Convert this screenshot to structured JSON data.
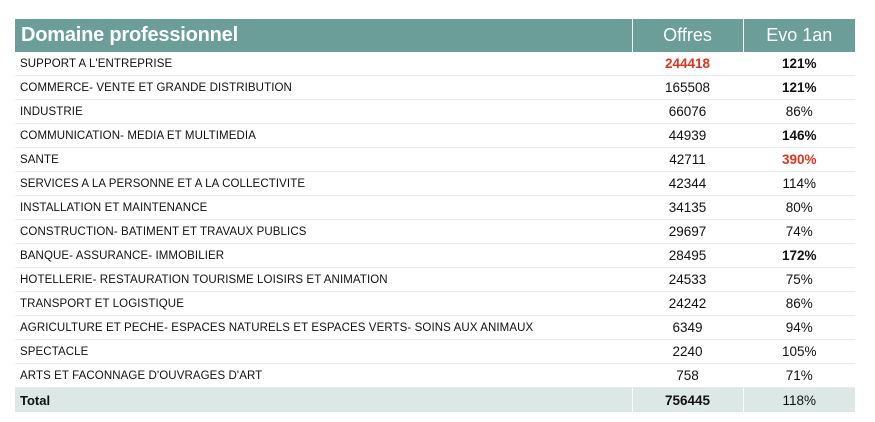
{
  "header": {
    "domain": "Domaine professionnel",
    "offres": "Offres",
    "evo": "Evo 1an"
  },
  "rows": [
    {
      "domain": "SUPPORT A L'ENTREPRISE",
      "offres": "244418",
      "evo": "121%"
    },
    {
      "domain": "COMMERCE- VENTE ET GRANDE DISTRIBUTION",
      "offres": "165508",
      "evo": "121%"
    },
    {
      "domain": "INDUSTRIE",
      "offres": "66076",
      "evo": "86%"
    },
    {
      "domain": "COMMUNICATION- MEDIA ET MULTIMEDIA",
      "offres": "44939",
      "evo": "146%"
    },
    {
      "domain": "SANTE",
      "offres": "42711",
      "evo": "390%"
    },
    {
      "domain": "SERVICES A LA PERSONNE ET A LA COLLECTIVITE",
      "offres": "42344",
      "evo": "114%"
    },
    {
      "domain": "INSTALLATION ET MAINTENANCE",
      "offres": "34135",
      "evo": "80%"
    },
    {
      "domain": "CONSTRUCTION- BATIMENT ET TRAVAUX PUBLICS",
      "offres": "29697",
      "evo": "74%"
    },
    {
      "domain": "BANQUE- ASSURANCE- IMMOBILIER",
      "offres": "28495",
      "evo": "172%"
    },
    {
      "domain": "HOTELLERIE- RESTAURATION TOURISME LOISIRS ET ANIMATION",
      "offres": "24533",
      "evo": "75%"
    },
    {
      "domain": "TRANSPORT ET LOGISTIQUE",
      "offres": "24242",
      "evo": "86%"
    },
    {
      "domain": "AGRICULTURE ET PECHE- ESPACES NATURELS ET ESPACES VERTS- SOINS AUX ANIMAUX",
      "offres": "6349",
      "evo": "94%"
    },
    {
      "domain": "SPECTACLE",
      "offres": "2240",
      "evo": "105%"
    },
    {
      "domain": "ARTS ET FACONNAGE D'OUVRAGES D'ART",
      "offres": "758",
      "evo": "71%"
    }
  ],
  "total": {
    "label": "Total",
    "offres": "756445",
    "evo": "118%"
  },
  "colors": {
    "header_bg": "#6b9e99",
    "total_bg": "#dce8e6",
    "highlight_red": "#e0341f"
  }
}
